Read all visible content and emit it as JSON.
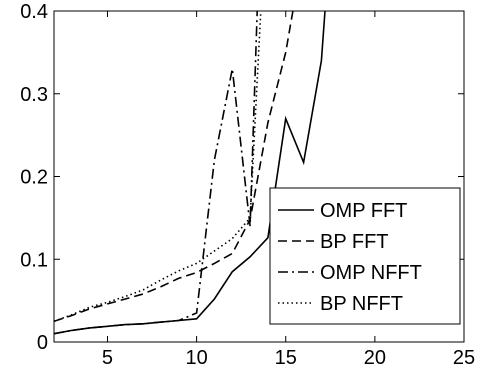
{
  "chart_data": {
    "type": "line",
    "title": "",
    "xlabel": "",
    "ylabel": "",
    "xlim": [
      2,
      25
    ],
    "ylim": [
      0,
      0.4
    ],
    "xticks": [
      5,
      10,
      15,
      20,
      25
    ],
    "yticks": [
      0,
      0.1,
      0.2,
      0.3,
      0.4
    ],
    "ytick_labels": [
      "0",
      "0.1",
      "0.2",
      "0.3",
      "0.4"
    ],
    "grid": false,
    "legend_position": "bottom-right",
    "series": [
      {
        "name": "OMP FFT",
        "style": "solid",
        "x": [
          2,
          3,
          4,
          5,
          6,
          7,
          8,
          9,
          10,
          11,
          12,
          13,
          14,
          15,
          16,
          17,
          17.2
        ],
        "y": [
          0.01,
          0.014,
          0.017,
          0.019,
          0.021,
          0.022,
          0.024,
          0.026,
          0.028,
          0.052,
          0.085,
          0.103,
          0.126,
          0.27,
          0.217,
          0.34,
          0.4
        ]
      },
      {
        "name": "BP FFT",
        "style": "dashed",
        "x": [
          2,
          3,
          4,
          5,
          6,
          7,
          8,
          9,
          10,
          11,
          12,
          13,
          14,
          15,
          15.4
        ],
        "y": [
          0.025,
          0.032,
          0.04,
          0.046,
          0.052,
          0.058,
          0.067,
          0.077,
          0.084,
          0.095,
          0.107,
          0.148,
          0.265,
          0.35,
          0.4
        ]
      },
      {
        "name": "OMP NFFT",
        "style": "dashdot",
        "x": [
          2,
          3,
          4,
          5,
          6,
          7,
          8,
          9,
          10,
          11,
          12,
          13,
          13.4
        ],
        "y": [
          0.01,
          0.014,
          0.017,
          0.019,
          0.021,
          0.022,
          0.024,
          0.026,
          0.035,
          0.22,
          0.33,
          0.14,
          0.4
        ]
      },
      {
        "name": "BP NFFT",
        "style": "dotted",
        "x": [
          2,
          3,
          4,
          5,
          6,
          7,
          8,
          9,
          10,
          11,
          12,
          13,
          13.6
        ],
        "y": [
          0.025,
          0.033,
          0.042,
          0.048,
          0.055,
          0.063,
          0.075,
          0.086,
          0.095,
          0.11,
          0.125,
          0.15,
          0.4
        ]
      }
    ]
  }
}
